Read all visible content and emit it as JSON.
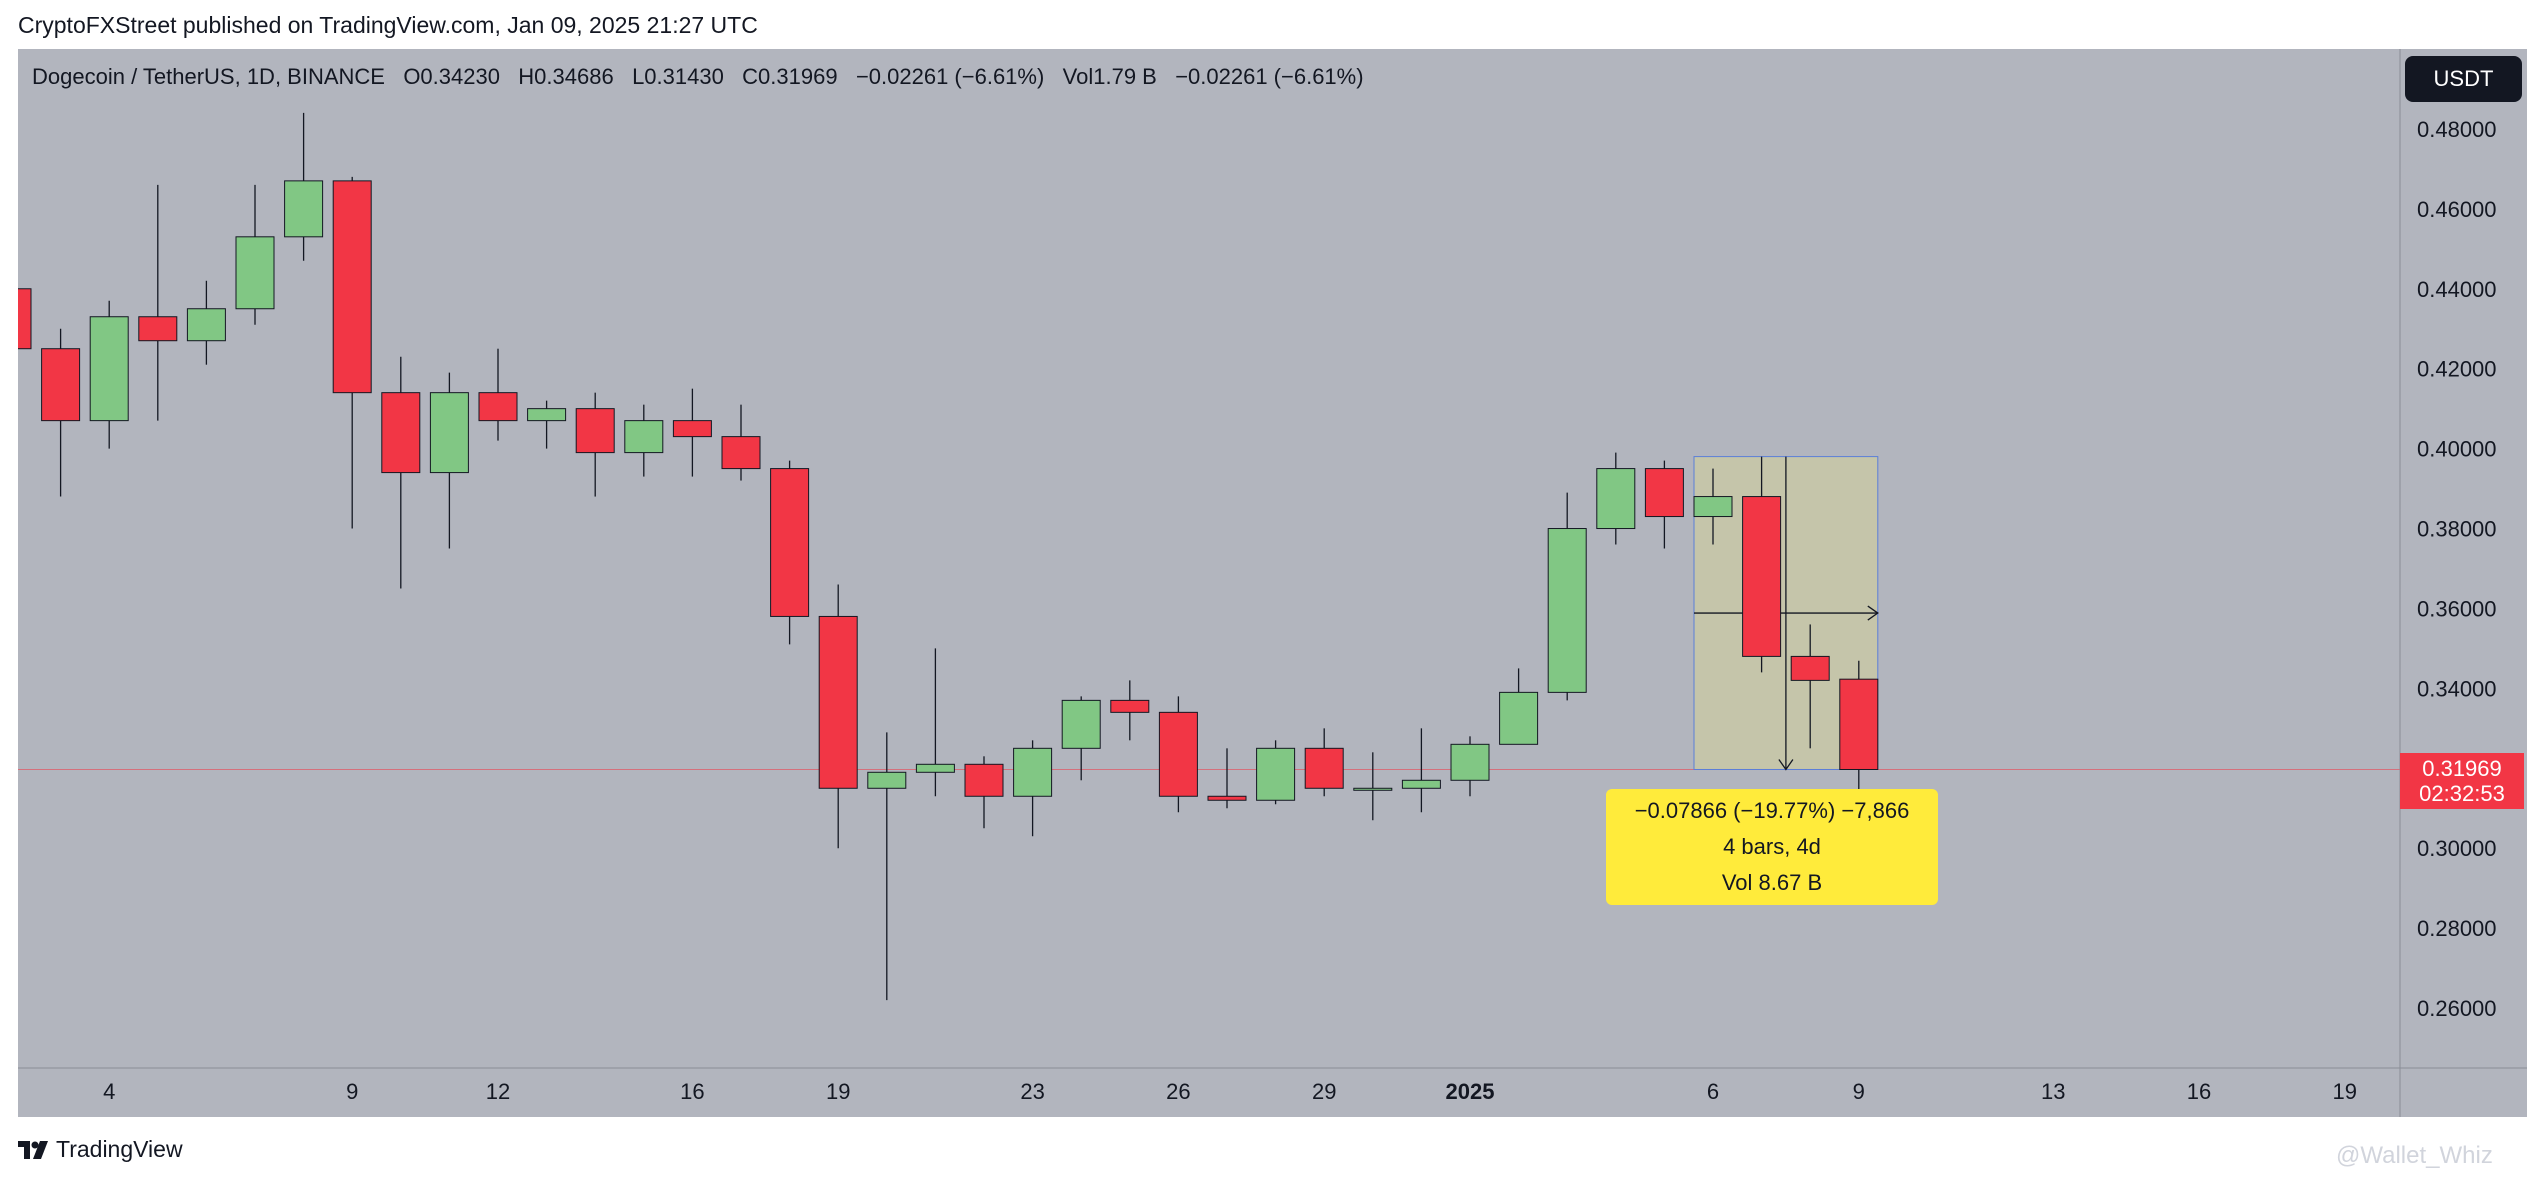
{
  "publish_info": "CryptoFXStreet published on TradingView.com, Jan 09, 2025 21:27 UTC",
  "legend": {
    "symbol": "Dogecoin / TetherUS, 1D, BINANCE",
    "open": "O0.34230",
    "high": "H0.34686",
    "low": "L0.31430",
    "close": "C0.31969",
    "change": "−0.02261 (−6.61%)",
    "volume": "Vol1.79 B",
    "vol_change": "−0.02261 (−6.61%)"
  },
  "currency_button": "USDT",
  "price_tag": {
    "price": "0.31969",
    "countdown": "02:32:53"
  },
  "measurement": {
    "line1": "−0.07866 (−19.77%) −7,866",
    "line2": "4 bars, 4d",
    "line3": "Vol 8.67 B"
  },
  "footer": {
    "brand": "TradingView",
    "watermark": "@Wallet_Whiz"
  },
  "colors": {
    "up": "#81c784",
    "down": "#f23645",
    "background": "#b2b5be",
    "measure_fill": "#ffeb3b",
    "measure_area": "#c5c5aa",
    "measure_border": "#5b7ed8"
  },
  "chart_data": {
    "type": "candlestick",
    "ylim": [
      0.245,
      0.5
    ],
    "y_ticks": [
      "0.48000",
      "0.46000",
      "0.44000",
      "0.42000",
      "0.40000",
      "0.38000",
      "0.36000",
      "0.34000",
      "0.32000",
      "0.30000",
      "0.28000",
      "0.26000"
    ],
    "x_ticks": [
      {
        "label": "4",
        "index": 2,
        "bold": false
      },
      {
        "label": "9",
        "index": 7,
        "bold": false
      },
      {
        "label": "12",
        "index": 10,
        "bold": false
      },
      {
        "label": "16",
        "index": 14,
        "bold": false
      },
      {
        "label": "19",
        "index": 17,
        "bold": false
      },
      {
        "label": "23",
        "index": 21,
        "bold": false
      },
      {
        "label": "26",
        "index": 24,
        "bold": false
      },
      {
        "label": "29",
        "index": 27,
        "bold": false
      },
      {
        "label": "2025",
        "index": 30,
        "bold": true
      },
      {
        "label": "6",
        "index": 35,
        "bold": false
      },
      {
        "label": "9",
        "index": 38,
        "bold": false
      },
      {
        "label": "13",
        "index": 42,
        "bold": false
      },
      {
        "label": "16",
        "index": 45,
        "bold": false
      },
      {
        "label": "19",
        "index": 48,
        "bold": false
      }
    ],
    "candles": [
      {
        "o": 0.44,
        "h": 0.442,
        "l": 0.42,
        "c": 0.425
      },
      {
        "o": 0.425,
        "h": 0.43,
        "l": 0.388,
        "c": 0.407
      },
      {
        "o": 0.407,
        "h": 0.437,
        "l": 0.4,
        "c": 0.433
      },
      {
        "o": 0.433,
        "h": 0.466,
        "l": 0.407,
        "c": 0.427
      },
      {
        "o": 0.427,
        "h": 0.442,
        "l": 0.421,
        "c": 0.435
      },
      {
        "o": 0.435,
        "h": 0.466,
        "l": 0.431,
        "c": 0.453
      },
      {
        "o": 0.453,
        "h": 0.484,
        "l": 0.447,
        "c": 0.467
      },
      {
        "o": 0.467,
        "h": 0.468,
        "l": 0.38,
        "c": 0.414
      },
      {
        "o": 0.414,
        "h": 0.423,
        "l": 0.365,
        "c": 0.394
      },
      {
        "o": 0.394,
        "h": 0.419,
        "l": 0.375,
        "c": 0.414
      },
      {
        "o": 0.414,
        "h": 0.425,
        "l": 0.402,
        "c": 0.407
      },
      {
        "o": 0.407,
        "h": 0.412,
        "l": 0.4,
        "c": 0.41
      },
      {
        "o": 0.41,
        "h": 0.414,
        "l": 0.388,
        "c": 0.399
      },
      {
        "o": 0.399,
        "h": 0.411,
        "l": 0.393,
        "c": 0.407
      },
      {
        "o": 0.407,
        "h": 0.415,
        "l": 0.393,
        "c": 0.403
      },
      {
        "o": 0.403,
        "h": 0.411,
        "l": 0.392,
        "c": 0.395
      },
      {
        "o": 0.395,
        "h": 0.397,
        "l": 0.351,
        "c": 0.358
      },
      {
        "o": 0.358,
        "h": 0.366,
        "l": 0.3,
        "c": 0.315
      },
      {
        "o": 0.315,
        "h": 0.329,
        "l": 0.262,
        "c": 0.319
      },
      {
        "o": 0.319,
        "h": 0.35,
        "l": 0.313,
        "c": 0.321
      },
      {
        "o": 0.321,
        "h": 0.323,
        "l": 0.305,
        "c": 0.313
      },
      {
        "o": 0.313,
        "h": 0.327,
        "l": 0.303,
        "c": 0.325
      },
      {
        "o": 0.325,
        "h": 0.338,
        "l": 0.317,
        "c": 0.337
      },
      {
        "o": 0.337,
        "h": 0.342,
        "l": 0.327,
        "c": 0.334
      },
      {
        "o": 0.334,
        "h": 0.338,
        "l": 0.309,
        "c": 0.313
      },
      {
        "o": 0.313,
        "h": 0.325,
        "l": 0.31,
        "c": 0.312
      },
      {
        "o": 0.312,
        "h": 0.327,
        "l": 0.311,
        "c": 0.325
      },
      {
        "o": 0.325,
        "h": 0.33,
        "l": 0.313,
        "c": 0.315
      },
      {
        "o": 0.315,
        "h": 0.324,
        "l": 0.307,
        "c": 0.315
      },
      {
        "o": 0.315,
        "h": 0.33,
        "l": 0.309,
        "c": 0.317
      },
      {
        "o": 0.317,
        "h": 0.328,
        "l": 0.313,
        "c": 0.326
      },
      {
        "o": 0.326,
        "h": 0.345,
        "l": 0.326,
        "c": 0.339
      },
      {
        "o": 0.339,
        "h": 0.389,
        "l": 0.337,
        "c": 0.38
      },
      {
        "o": 0.38,
        "h": 0.399,
        "l": 0.376,
        "c": 0.395
      },
      {
        "o": 0.395,
        "h": 0.397,
        "l": 0.375,
        "c": 0.383
      },
      {
        "o": 0.383,
        "h": 0.395,
        "l": 0.376,
        "c": 0.388
      },
      {
        "o": 0.388,
        "h": 0.398,
        "l": 0.344,
        "c": 0.348
      },
      {
        "o": 0.348,
        "h": 0.356,
        "l": 0.325,
        "c": 0.342
      },
      {
        "o": 0.3423,
        "h": 0.3469,
        "l": 0.3143,
        "c": 0.3197
      }
    ],
    "current_price": 0.31969,
    "measure": {
      "from_index": 35,
      "to_index": 38,
      "top": 0.398,
      "bottom": 0.3197
    }
  }
}
